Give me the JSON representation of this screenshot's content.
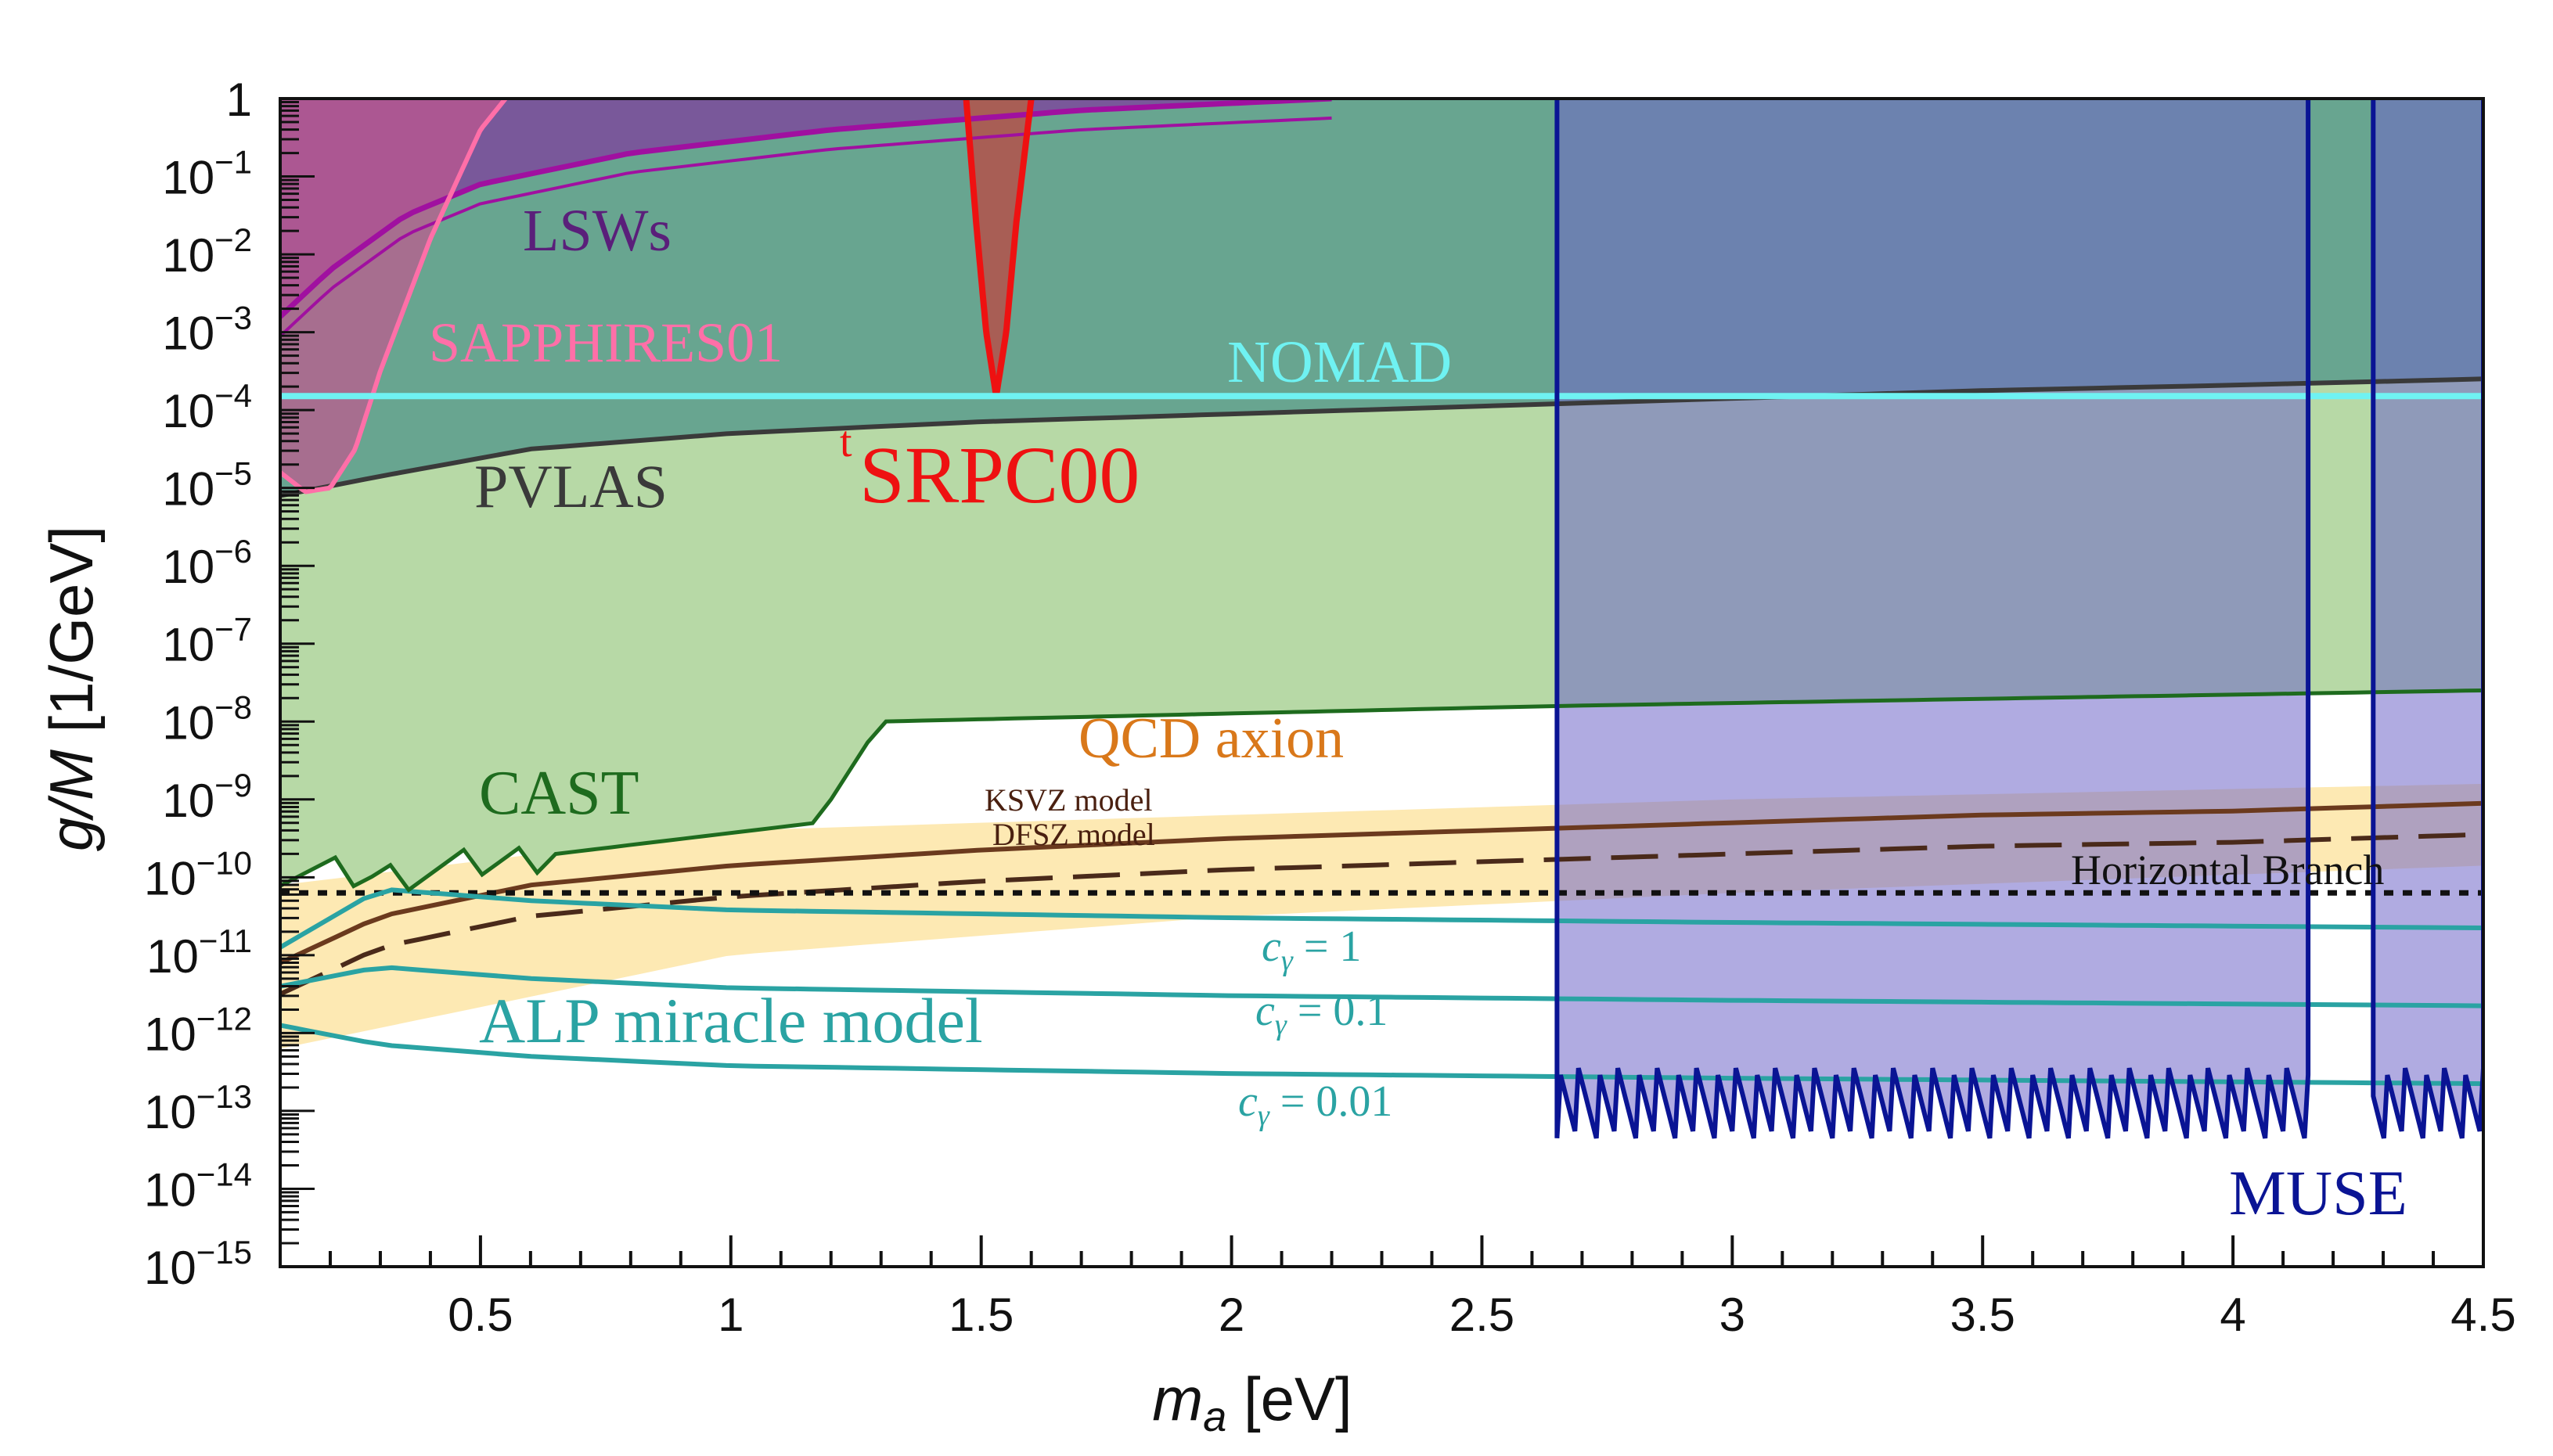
{
  "chart_data": {
    "type": "exclusion-plot",
    "xlabel_var": "m",
    "xlabel_sub": "a",
    "xlabel_unit": " [eV]",
    "ylabel_var": "g/M",
    "ylabel_unit": " [1/GeV]",
    "xlim": [
      0.1,
      4.5
    ],
    "ylim_log10": [
      -15,
      0
    ],
    "xticks": [
      {
        "value": 0.5,
        "label": "0.5"
      },
      {
        "value": 1,
        "label": "1"
      },
      {
        "value": 1.5,
        "label": "1.5"
      },
      {
        "value": 2,
        "label": "2"
      },
      {
        "value": 2.5,
        "label": "2.5"
      },
      {
        "value": 3,
        "label": "3"
      },
      {
        "value": 3.5,
        "label": "3.5"
      },
      {
        "value": 4,
        "label": "4"
      },
      {
        "value": 4.5,
        "label": "4.5"
      }
    ],
    "yticks": [
      {
        "exp": 0,
        "base": "1",
        "sup": ""
      },
      {
        "exp": -1,
        "base": "10",
        "sup": "−1"
      },
      {
        "exp": -2,
        "base": "10",
        "sup": "−2"
      },
      {
        "exp": -3,
        "base": "10",
        "sup": "−3"
      },
      {
        "exp": -4,
        "base": "10",
        "sup": "−4"
      },
      {
        "exp": -5,
        "base": "10",
        "sup": "−5"
      },
      {
        "exp": -6,
        "base": "10",
        "sup": "−6"
      },
      {
        "exp": -7,
        "base": "10",
        "sup": "−7"
      },
      {
        "exp": -8,
        "base": "10",
        "sup": "−8"
      },
      {
        "exp": -9,
        "base": "10",
        "sup": "−9"
      },
      {
        "exp": -10,
        "base": "10",
        "sup": "−10"
      },
      {
        "exp": -11,
        "base": "10",
        "sup": "−11"
      },
      {
        "exp": -12,
        "base": "10",
        "sup": "−12"
      },
      {
        "exp": -13,
        "base": "10",
        "sup": "−13"
      },
      {
        "exp": -14,
        "base": "10",
        "sup": "−14"
      },
      {
        "exp": -15,
        "base": "10",
        "sup": "−15"
      }
    ],
    "colors": {
      "cast_fill": "#b7d9a6",
      "cast_line": "#1e6b1e",
      "pvlas_fill": "#5f9e8e",
      "pvlas_line": "#3a3a3a",
      "lsw_fill": "#7c4a9c",
      "lsw_line": "#a010a0",
      "sapphires_fill": "#c2578e",
      "sapphires_line": "#ff6fa8",
      "tsrpc_fill": "#a85e55",
      "tsrpc_line": "#ee1111",
      "nomad_line": "#6ff2f2",
      "muse_fill": "#6f66c8",
      "muse_line": "#0a1494",
      "qcd_band": "#fde9b3",
      "qcd_label": "#d9781a",
      "ksvz_line": "#6b3a1e",
      "dfsz_line": "#4a2a1a",
      "hb_line": "#111111",
      "alp_line": "#2aa3a3"
    },
    "series": [
      {
        "name": "CAST",
        "label": "CAST",
        "x": [
          0.1,
          0.3,
          0.65,
          1.17,
          1.3,
          2.65,
          4.5
        ],
        "log10_y": [
          -9.9,
          -10.0,
          -9.7,
          -9.3,
          -8.0,
          -7.8,
          -7.6
        ]
      },
      {
        "name": "PVLAS",
        "label": "PVLAS",
        "x": [
          0.1,
          0.3,
          0.6,
          1.0,
          1.5,
          2.0,
          2.5,
          3.0,
          3.5,
          4.0,
          4.5
        ],
        "log10_y": [
          -5.1,
          -4.85,
          -4.5,
          -4.3,
          -4.15,
          -4.05,
          -3.95,
          -3.85,
          -3.75,
          -3.68,
          -3.6
        ]
      },
      {
        "name": "LSWs",
        "label": "LSWs",
        "x": [
          0.1,
          0.2,
          0.35,
          0.5,
          0.8,
          1.2,
          1.7,
          2.2
        ],
        "log10_y": [
          -2.8,
          -2.2,
          -1.5,
          -1.1,
          -0.7,
          -0.4,
          -0.15,
          0.0
        ]
      },
      {
        "name": "SAPPHIRES01",
        "label": "SAPPHIRES01",
        "x": [
          0.1,
          0.15,
          0.2,
          0.25,
          0.3,
          0.4,
          0.5,
          0.55
        ],
        "log10_y": [
          -4.8,
          -5.05,
          -5.0,
          -4.5,
          -3.5,
          -1.8,
          -0.4,
          0.0
        ]
      },
      {
        "name": "tSRPC00",
        "label_sup": "t",
        "label": "SRPC00",
        "x": [
          1.47,
          1.49,
          1.51,
          1.53,
          1.55,
          1.57,
          1.6
        ],
        "log10_y": [
          0.0,
          -1.6,
          -3.0,
          -3.82,
          -3.0,
          -1.6,
          0.0
        ]
      },
      {
        "name": "NOMAD",
        "label": "NOMAD",
        "x": [
          0.1,
          4.5
        ],
        "log10_y": [
          -3.82,
          -3.82
        ]
      },
      {
        "name": "MUSE",
        "label": "MUSE",
        "x_ranges": [
          [
            2.65,
            4.15
          ],
          [
            4.28,
            4.5
          ]
        ],
        "log10_y_floor": -12.9
      },
      {
        "name": "QCD axion band",
        "label": "QCD axion",
        "x": [
          0.1,
          1.0,
          2.0,
          3.0,
          4.5
        ],
        "log10_y_low": [
          -12.2,
          -11.0,
          -10.5,
          -10.2,
          -9.85
        ],
        "log10_y_high": [
          -10.1,
          -9.4,
          -9.2,
          -9.0,
          -8.8
        ]
      },
      {
        "name": "KSVZ model",
        "label": "KSVZ model",
        "x": [
          0.1,
          0.3,
          0.6,
          1.0,
          1.5,
          2.0,
          2.5,
          3.0,
          3.5,
          4.0,
          4.5
        ],
        "log10_y": [
          -11.1,
          -10.5,
          -10.1,
          -9.85,
          -9.65,
          -9.5,
          -9.4,
          -9.3,
          -9.2,
          -9.15,
          -9.05
        ]
      },
      {
        "name": "DFSZ model",
        "label": "DFSZ model",
        "x": [
          0.1,
          0.3,
          0.6,
          1.0,
          1.5,
          2.0,
          2.5,
          3.0,
          3.5,
          4.0,
          4.5
        ],
        "log10_y": [
          -11.5,
          -10.9,
          -10.5,
          -10.25,
          -10.05,
          -9.9,
          -9.8,
          -9.7,
          -9.6,
          -9.55,
          -9.45
        ]
      },
      {
        "name": "Horizontal Branch",
        "label": "Horizontal Branch",
        "x": [
          0.1,
          4.5
        ],
        "log10_y": [
          -10.2,
          -10.2
        ]
      },
      {
        "name": "ALP c_gamma=1",
        "label_sub": "γ",
        "label_value": " = 1",
        "x": [
          0.1,
          0.3,
          0.6,
          1.0,
          2.0,
          3.0,
          4.5
        ],
        "log10_y": [
          -10.9,
          -10.15,
          -10.3,
          -10.42,
          -10.52,
          -10.58,
          -10.65
        ]
      },
      {
        "name": "ALP c_gamma=0.1",
        "label_sub": "γ",
        "label_value": " = 0.1",
        "x": [
          0.1,
          0.3,
          0.6,
          1.0,
          2.0,
          3.0,
          4.5
        ],
        "log10_y": [
          -11.4,
          -11.15,
          -11.3,
          -11.42,
          -11.52,
          -11.58,
          -11.65
        ]
      },
      {
        "name": "ALP c_gamma=0.01",
        "label_sub": "γ",
        "label_value": " = 0.01",
        "x": [
          0.1,
          0.3,
          0.6,
          1.0,
          2.0,
          3.0,
          4.5
        ],
        "log10_y": [
          -11.9,
          -12.15,
          -12.3,
          -12.42,
          -12.52,
          -12.58,
          -12.65
        ]
      }
    ],
    "annotations": {
      "alp_model": "ALP miracle model",
      "c_symbol": "c"
    }
  }
}
